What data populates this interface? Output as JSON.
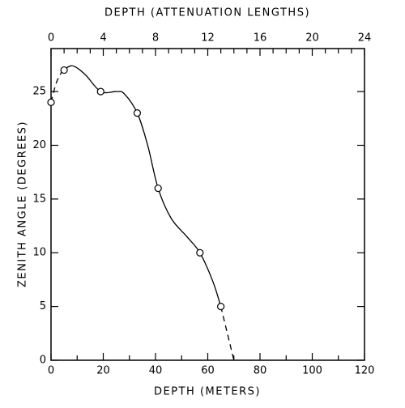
{
  "chart_data": {
    "type": "scatter",
    "xlabel": "DEPTH (METERS)",
    "ylabel": "ZENITH ANGLE (DEGREES)",
    "x2label": "DEPTH (ATTENUATION LENGTHS)",
    "x": [
      0,
      5,
      19,
      33,
      41,
      57,
      65
    ],
    "values": [
      24,
      27,
      25,
      23,
      16,
      10,
      5
    ],
    "color": "#000000",
    "fit": {
      "x": [
        4,
        8,
        13,
        19,
        25,
        28,
        33,
        37,
        41,
        46,
        52,
        57,
        62,
        65
      ],
      "values": [
        26.8,
        27.4,
        26.6,
        25,
        25,
        24.8,
        23,
        20,
        16,
        13.2,
        11.5,
        10,
        7.3,
        5
      ]
    },
    "fit_dashed": {
      "x": [
        0,
        2,
        4,
        null,
        65,
        67.5,
        70
      ],
      "values": [
        24,
        25.8,
        26.8,
        null,
        5,
        2.5,
        0
      ]
    },
    "xlim": [
      0,
      120
    ],
    "xticks": [
      0,
      20,
      40,
      60,
      80,
      100,
      120
    ],
    "xminorticks": [
      10,
      30,
      50,
      70,
      90,
      110
    ],
    "x2lim": [
      0,
      24
    ],
    "x2ticks": [
      0,
      4,
      8,
      12,
      16,
      20,
      24
    ],
    "x2minorticks": [
      1,
      2,
      3,
      5,
      6,
      7,
      9,
      10,
      11,
      13,
      14,
      15,
      17,
      18,
      19,
      21,
      22,
      23
    ],
    "ylim": [
      0,
      29
    ],
    "yticks": [
      0,
      5,
      10,
      15,
      20,
      25
    ]
  }
}
